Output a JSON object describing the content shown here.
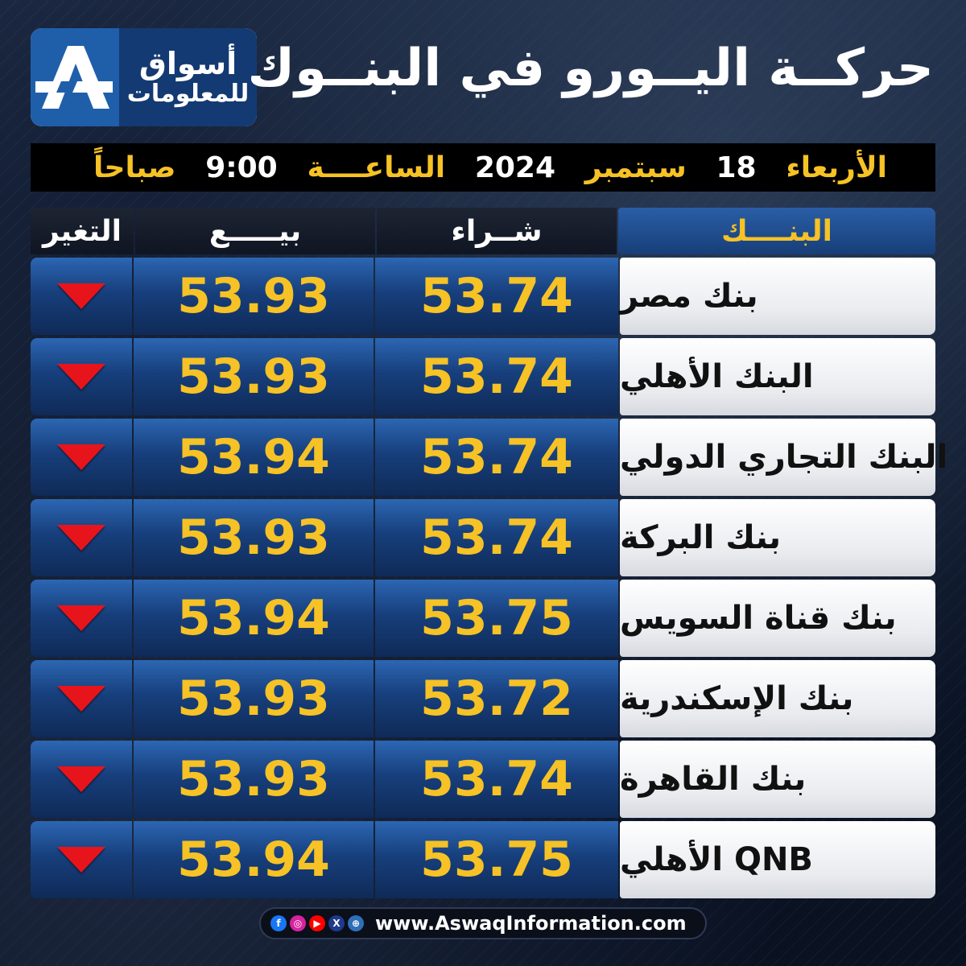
{
  "brand": {
    "line1": "أسواق",
    "line2": "للمعلومات"
  },
  "title": "حركــة اليــورو في البنــوك",
  "date": {
    "day": "الأربعاء",
    "day_num": "18",
    "month": "سبتمبر",
    "year": "2024",
    "time_label": "الساعــــة",
    "time": "9:00",
    "period": "صباحاً"
  },
  "headers": {
    "bank": "البنــــك",
    "buy": "شــراء",
    "sell": "بيـــــع",
    "change": "التغير"
  },
  "rows": [
    {
      "bank": "بنك مصر",
      "buy": "53.74",
      "sell": "53.93",
      "change": "down"
    },
    {
      "bank": "البنك الأهلي",
      "buy": "53.74",
      "sell": "53.93",
      "change": "down"
    },
    {
      "bank": "البنك التجاري الدولي",
      "buy": "53.74",
      "sell": "53.94",
      "change": "down"
    },
    {
      "bank": "بنك البركة",
      "buy": "53.74",
      "sell": "53.93",
      "change": "down"
    },
    {
      "bank": "بنك قناة السويس",
      "buy": "53.75",
      "sell": "53.94",
      "change": "down"
    },
    {
      "bank": "بنك الإسكندرية",
      "buy": "53.72",
      "sell": "53.93",
      "change": "down"
    },
    {
      "bank": "بنك القاهرة",
      "buy": "53.74",
      "sell": "53.93",
      "change": "down"
    },
    {
      "bank": "QNB الأهلي",
      "buy": "53.75",
      "sell": "53.94",
      "change": "down"
    }
  ],
  "footer": {
    "url": "www.AswaqInformation.com",
    "icons": [
      "facebook-icon",
      "instagram-icon",
      "youtube-icon",
      "x-icon",
      "web-icon"
    ]
  },
  "colors": {
    "accent": "#f6c225",
    "down": "#e8141b",
    "panel": "#1f4f93"
  }
}
